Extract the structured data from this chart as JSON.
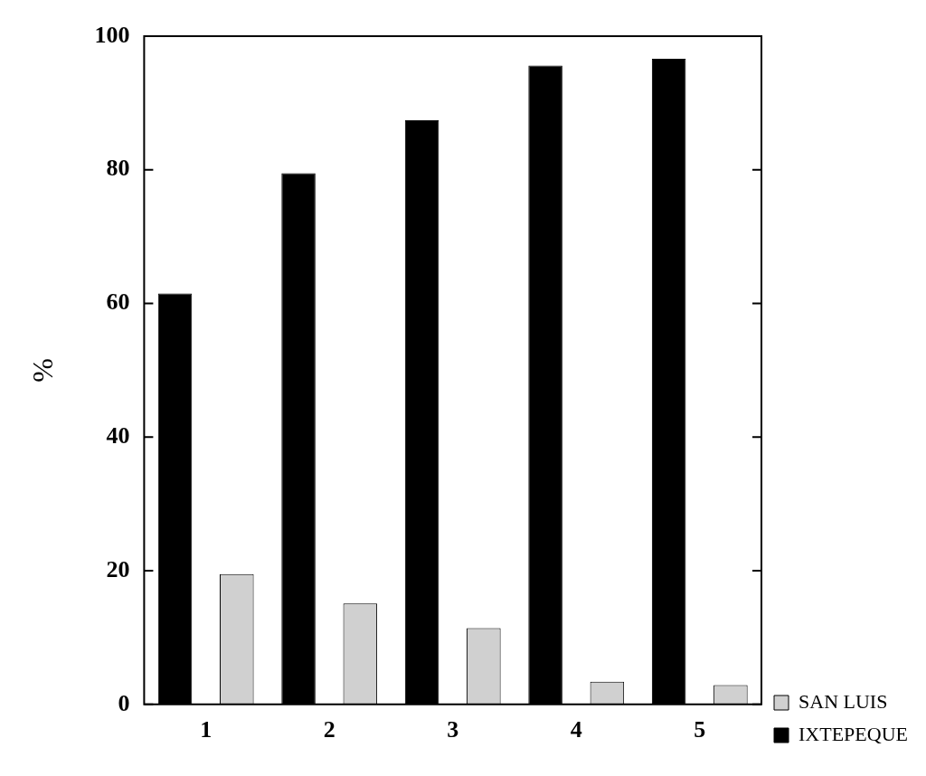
{
  "chart_data": {
    "type": "bar",
    "ylabel": "%",
    "categories": [
      "1",
      "2",
      "3",
      "4",
      "5"
    ],
    "series": [
      {
        "name": "IXTEPEQUE",
        "color": "#000000",
        "values": [
          61.5,
          79.5,
          87.4,
          95.6,
          96.6
        ]
      },
      {
        "name": "SAN LUIS",
        "color": "#d0d0d0",
        "values": [
          19.5,
          15.1,
          11.4,
          3.4,
          2.9
        ]
      }
    ],
    "ylim": [
      0,
      100
    ],
    "yticks": [
      0,
      20,
      40,
      60,
      80,
      100
    ],
    "grid": false,
    "legend": "bottom right"
  }
}
